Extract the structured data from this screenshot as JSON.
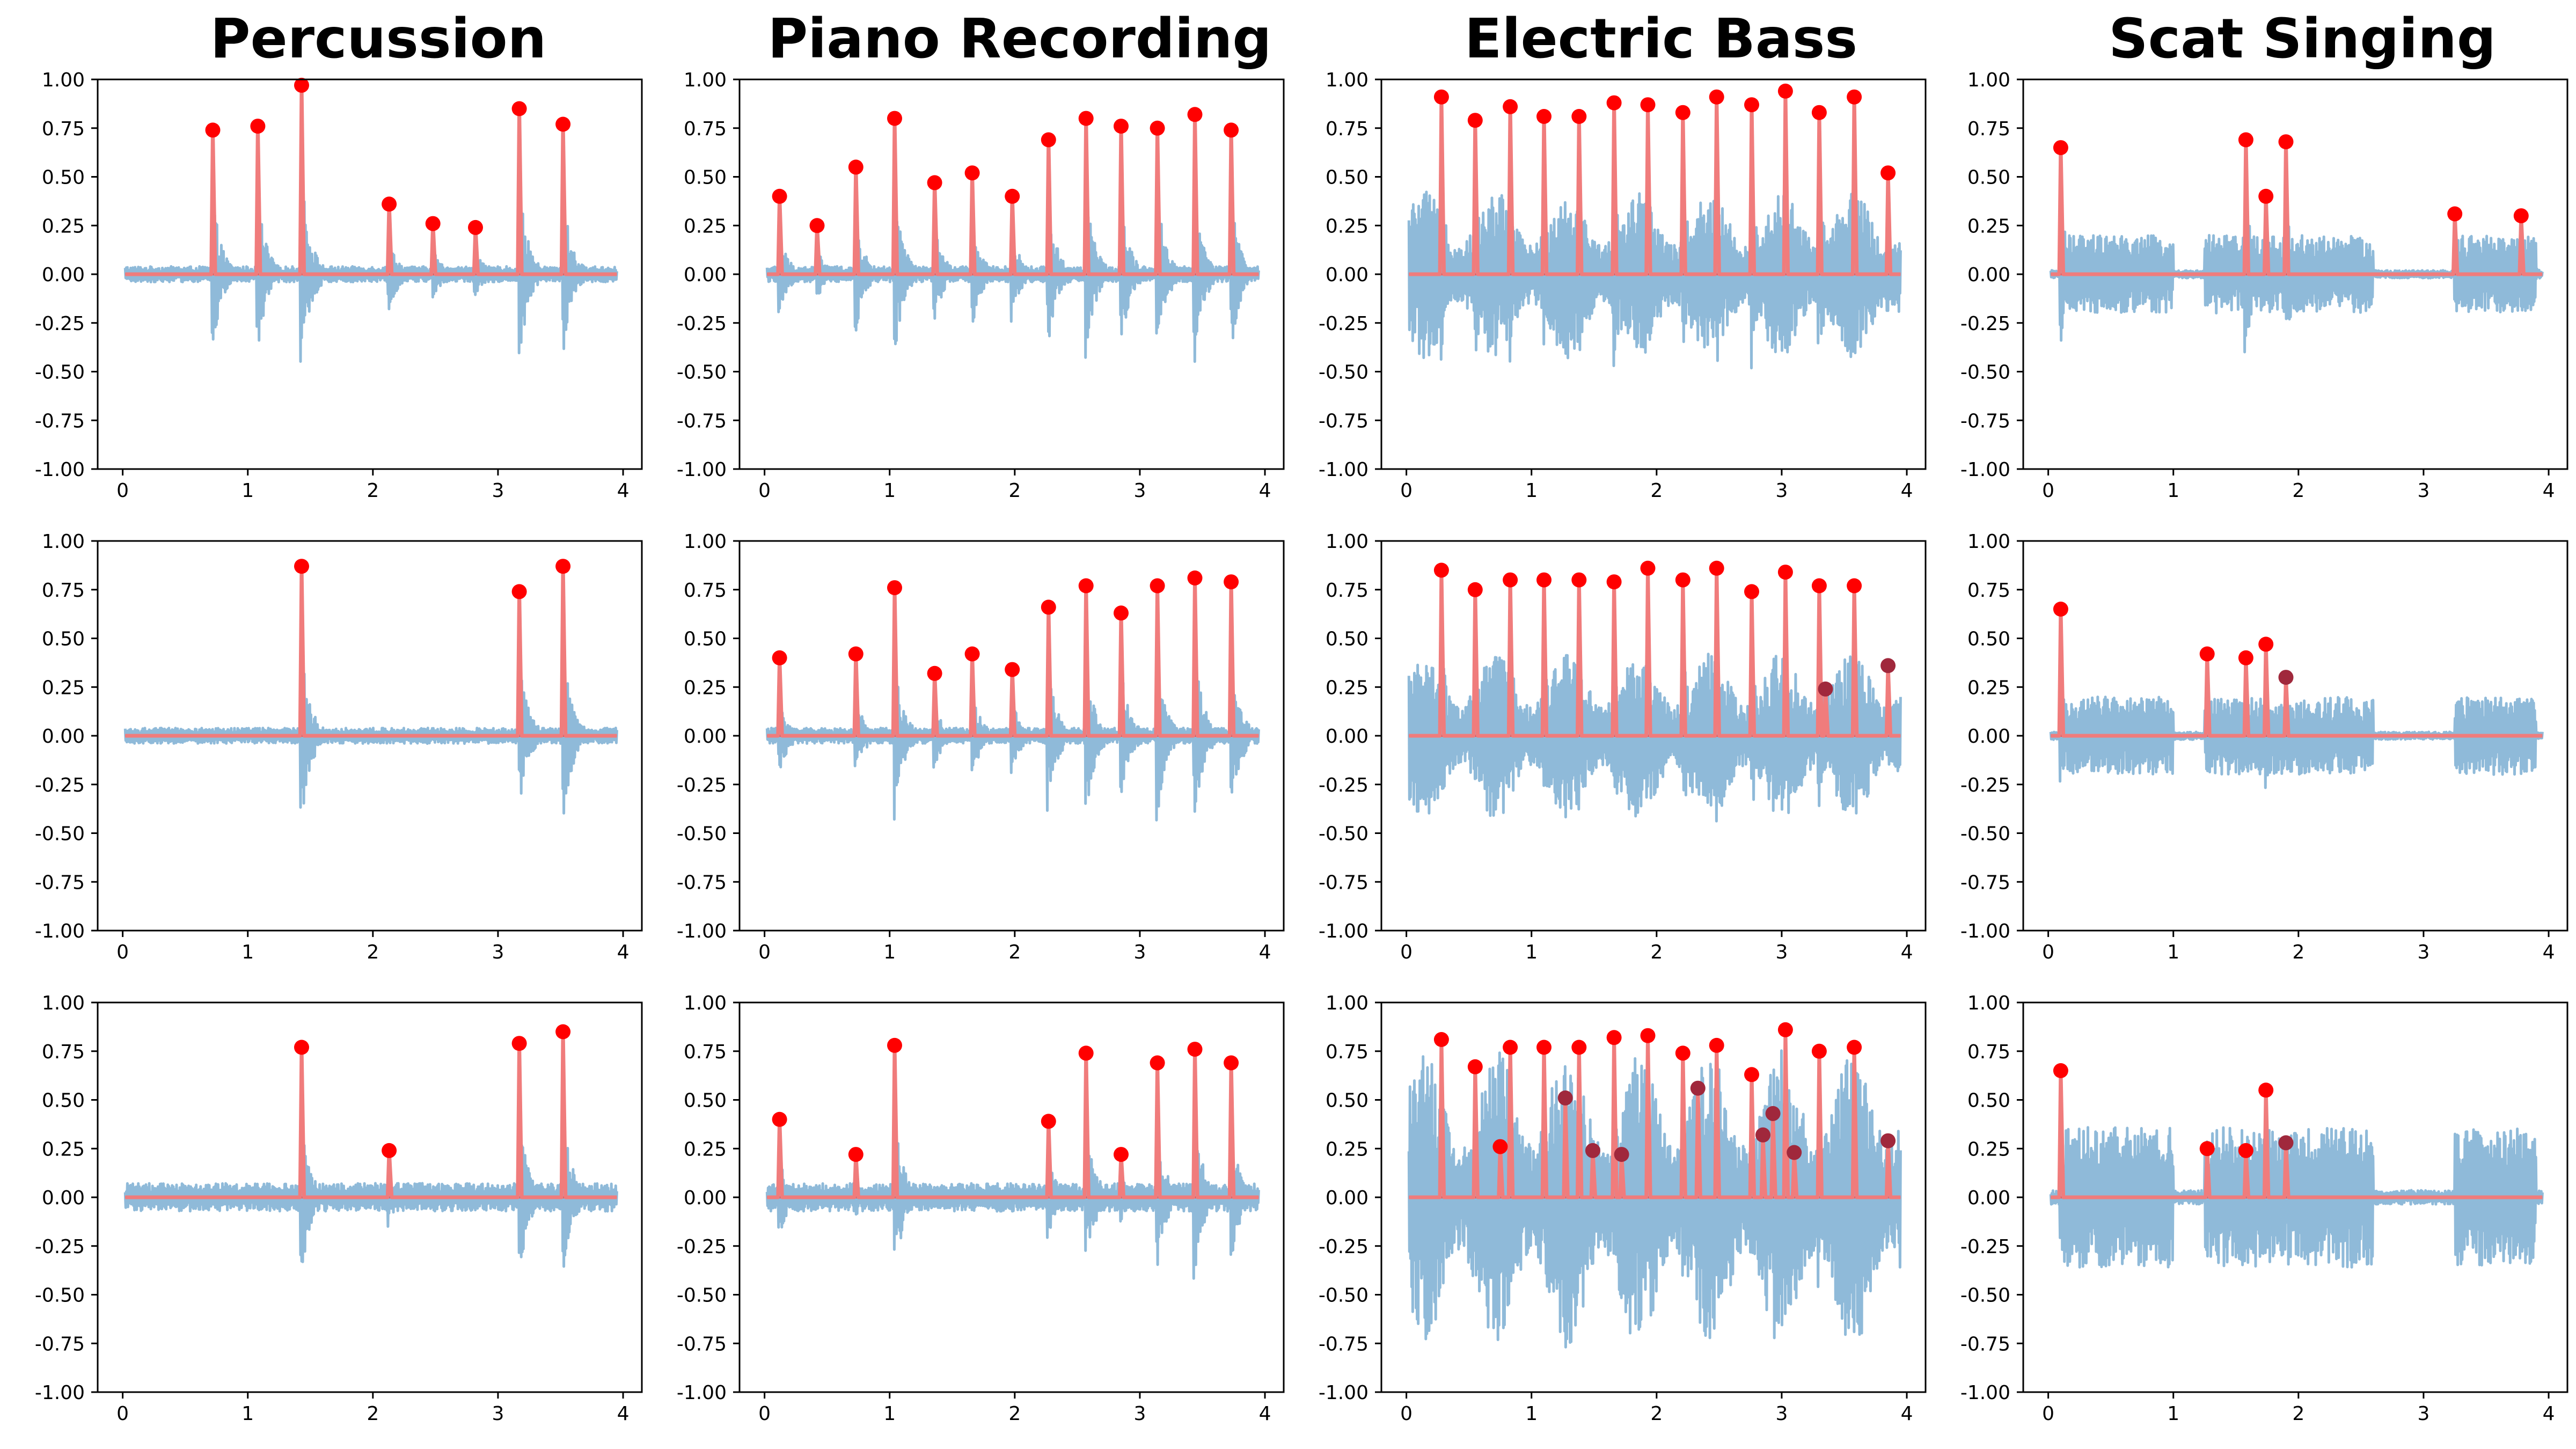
{
  "column_titles": [
    "Percussion",
    "Piano Recording",
    "Electric Bass",
    "Scat Singing"
  ],
  "colors": {
    "waveform": "#8fbad9",
    "onset_envelope": "#f07c7c",
    "peak_marker": "#ff0000",
    "peak_marker_overlap": "#a0283c",
    "baseline": "#c0404a"
  },
  "chart_data": [
    {
      "title": "Percussion",
      "type": "line",
      "series": [
        {
          "values": [
            0.74,
            0.76,
            0.97,
            0.36,
            0.26,
            0.24,
            0.85,
            0.77
          ],
          "x": [
            0.72,
            1.08,
            1.43,
            2.13,
            2.48,
            2.82,
            3.17,
            3.52
          ]
        }
      ],
      "xlim": [
        -0.2,
        4.15
      ],
      "ylim": [
        -1,
        1
      ],
      "xticks": [
        0,
        1,
        2,
        3,
        4
      ],
      "yticks": [
        1,
        0.75,
        0.5,
        0.25,
        0,
        -0.25,
        -0.5,
        -0.75,
        -1
      ],
      "row": 0,
      "col": 0
    },
    {
      "title": "Piano Recording",
      "type": "line",
      "series": [
        {
          "values": [
            0.4,
            0.25,
            0.55,
            0.8,
            0.47,
            0.52,
            0.4,
            0.69,
            0.8,
            0.76,
            0.75,
            0.82,
            0.74
          ],
          "x": [
            0.12,
            0.42,
            0.73,
            1.04,
            1.36,
            1.66,
            1.98,
            2.27,
            2.57,
            2.85,
            3.14,
            3.44,
            3.73
          ]
        }
      ],
      "xlim": [
        -0.2,
        4.15
      ],
      "ylim": [
        -1,
        1
      ],
      "xticks": [
        0,
        1,
        2,
        3,
        4
      ],
      "yticks": [
        1,
        0.75,
        0.5,
        0.25,
        0,
        -0.25,
        -0.5,
        -0.75,
        -1
      ],
      "row": 0,
      "col": 1
    },
    {
      "title": "Electric Bass",
      "type": "line",
      "series": [
        {
          "values": [
            0.91,
            0.79,
            0.86,
            0.81,
            0.81,
            0.88,
            0.87,
            0.83,
            0.91,
            0.87,
            0.94,
            0.83,
            0.91,
            0.52
          ],
          "x": [
            0.28,
            0.55,
            0.83,
            1.1,
            1.38,
            1.66,
            1.93,
            2.21,
            2.48,
            2.76,
            3.03,
            3.3,
            3.58,
            3.85
          ]
        }
      ],
      "xlim": [
        -0.2,
        4.15
      ],
      "ylim": [
        -1,
        1
      ],
      "xticks": [
        0,
        1,
        2,
        3,
        4
      ],
      "yticks": [
        1,
        0.75,
        0.5,
        0.25,
        0,
        -0.25,
        -0.5,
        -0.75,
        -1
      ],
      "row": 0,
      "col": 2
    },
    {
      "title": "Scat Singing",
      "type": "line",
      "series": [
        {
          "values": [
            0.65,
            0.69,
            0.4,
            0.68,
            0.31,
            0.3
          ],
          "x": [
            0.1,
            1.58,
            1.74,
            1.9,
            3.25,
            3.78
          ]
        }
      ],
      "xlim": [
        -0.2,
        4.15
      ],
      "ylim": [
        -1,
        1
      ],
      "xticks": [
        0,
        1,
        2,
        3,
        4
      ],
      "yticks": [
        1,
        0.75,
        0.5,
        0.25,
        0,
        -0.25,
        -0.5,
        -0.75,
        -1
      ],
      "row": 0,
      "col": 3
    },
    {
      "title": "",
      "type": "line",
      "series": [
        {
          "values": [
            0.87,
            0.74,
            0.87
          ],
          "x": [
            1.43,
            3.17,
            3.52
          ]
        }
      ],
      "xlim": [
        -0.2,
        4.15
      ],
      "ylim": [
        -1,
        1
      ],
      "xticks": [
        0,
        1,
        2,
        3,
        4
      ],
      "yticks": [
        1,
        0.75,
        0.5,
        0.25,
        0,
        -0.25,
        -0.5,
        -0.75,
        -1
      ],
      "row": 1,
      "col": 0
    },
    {
      "title": "",
      "type": "line",
      "series": [
        {
          "values": [
            0.4,
            0.42,
            0.76,
            0.32,
            0.42,
            0.34,
            0.66,
            0.77,
            0.63,
            0.77,
            0.81,
            0.79
          ],
          "x": [
            0.12,
            0.73,
            1.04,
            1.36,
            1.66,
            1.98,
            2.27,
            2.57,
            2.85,
            3.14,
            3.44,
            3.73
          ]
        }
      ],
      "xlim": [
        -0.2,
        4.15
      ],
      "ylim": [
        -1,
        1
      ],
      "xticks": [
        0,
        1,
        2,
        3,
        4
      ],
      "yticks": [
        1,
        0.75,
        0.5,
        0.25,
        0,
        -0.25,
        -0.5,
        -0.75,
        -1
      ],
      "row": 1,
      "col": 1
    },
    {
      "title": "",
      "type": "line",
      "series": [
        {
          "values": [
            0.85,
            0.75,
            0.8,
            0.8,
            0.8,
            0.79,
            0.86,
            0.8,
            0.86,
            0.74,
            0.84,
            0.77,
            0.77,
            0.36,
            0.24
          ],
          "x": [
            0.28,
            0.55,
            0.83,
            1.1,
            1.38,
            1.66,
            1.93,
            2.21,
            2.48,
            2.76,
            3.03,
            3.3,
            3.58,
            3.85,
            3.35
          ]
        }
      ],
      "xlim": [
        -0.2,
        4.15
      ],
      "ylim": [
        -1,
        1
      ],
      "xticks": [
        0,
        1,
        2,
        3,
        4
      ],
      "yticks": [
        1,
        0.75,
        0.5,
        0.25,
        0,
        -0.25,
        -0.5,
        -0.75,
        -1
      ],
      "row": 1,
      "col": 2
    },
    {
      "title": "",
      "type": "line",
      "series": [
        {
          "values": [
            0.65,
            0.42,
            0.4,
            0.47,
            0.3
          ],
          "x": [
            0.1,
            1.27,
            1.58,
            1.74,
            1.9
          ]
        }
      ],
      "xlim": [
        -0.2,
        4.15
      ],
      "ylim": [
        -1,
        1
      ],
      "xticks": [
        0,
        1,
        2,
        3,
        4
      ],
      "yticks": [
        1,
        0.75,
        0.5,
        0.25,
        0,
        -0.25,
        -0.5,
        -0.75,
        -1
      ],
      "row": 1,
      "col": 3
    },
    {
      "title": "",
      "type": "line",
      "series": [
        {
          "values": [
            0.77,
            0.24,
            0.79,
            0.85
          ],
          "x": [
            1.43,
            2.13,
            3.17,
            3.52
          ]
        }
      ],
      "xlim": [
        -0.2,
        4.15
      ],
      "ylim": [
        -1,
        1
      ],
      "xticks": [
        0,
        1,
        2,
        3,
        4
      ],
      "yticks": [
        1,
        0.75,
        0.5,
        0.25,
        0,
        -0.25,
        -0.5,
        -0.75,
        -1
      ],
      "row": 2,
      "col": 0
    },
    {
      "title": "",
      "type": "line",
      "series": [
        {
          "values": [
            0.4,
            0.22,
            0.78,
            0.39,
            0.74,
            0.22,
            0.69,
            0.76,
            0.69
          ],
          "x": [
            0.12,
            0.73,
            1.04,
            2.27,
            2.57,
            2.85,
            3.14,
            3.44,
            3.73
          ]
        }
      ],
      "xlim": [
        -0.2,
        4.15
      ],
      "ylim": [
        -1,
        1
      ],
      "xticks": [
        0,
        1,
        2,
        3,
        4
      ],
      "yticks": [
        1,
        0.75,
        0.5,
        0.25,
        0,
        -0.25,
        -0.5,
        -0.75,
        -1
      ],
      "row": 2,
      "col": 1
    },
    {
      "title": "",
      "type": "line",
      "series": [
        {
          "values": [
            0.81,
            0.67,
            0.26,
            0.77,
            0.77,
            0.51,
            0.77,
            0.24,
            0.82,
            0.22,
            0.83,
            0.74,
            0.56,
            0.78,
            0.63,
            0.32,
            0.43,
            0.86,
            0.23,
            0.75,
            0.77,
            0.29
          ],
          "x": [
            0.28,
            0.55,
            0.75,
            0.83,
            1.1,
            1.27,
            1.38,
            1.49,
            1.66,
            1.72,
            1.93,
            2.21,
            2.33,
            2.48,
            2.76,
            2.85,
            2.93,
            3.03,
            3.1,
            3.3,
            3.58,
            3.85
          ]
        }
      ],
      "xlim": [
        -0.2,
        4.15
      ],
      "ylim": [
        -1,
        1
      ],
      "xticks": [
        0,
        1,
        2,
        3,
        4
      ],
      "yticks": [
        1,
        0.75,
        0.5,
        0.25,
        0,
        -0.25,
        -0.5,
        -0.75,
        -1
      ],
      "row": 2,
      "col": 2
    },
    {
      "title": "",
      "type": "line",
      "series": [
        {
          "values": [
            0.65,
            0.25,
            0.24,
            0.55,
            0.28
          ],
          "x": [
            0.1,
            1.27,
            1.58,
            1.74,
            1.9
          ]
        }
      ],
      "xlim": [
        -0.2,
        4.15
      ],
      "ylim": [
        -1,
        1
      ],
      "xticks": [
        0,
        1,
        2,
        3,
        4
      ],
      "yticks": [
        1,
        0.75,
        0.5,
        0.25,
        0,
        -0.25,
        -0.5,
        -0.75,
        -1
      ],
      "row": 2,
      "col": 3
    }
  ]
}
